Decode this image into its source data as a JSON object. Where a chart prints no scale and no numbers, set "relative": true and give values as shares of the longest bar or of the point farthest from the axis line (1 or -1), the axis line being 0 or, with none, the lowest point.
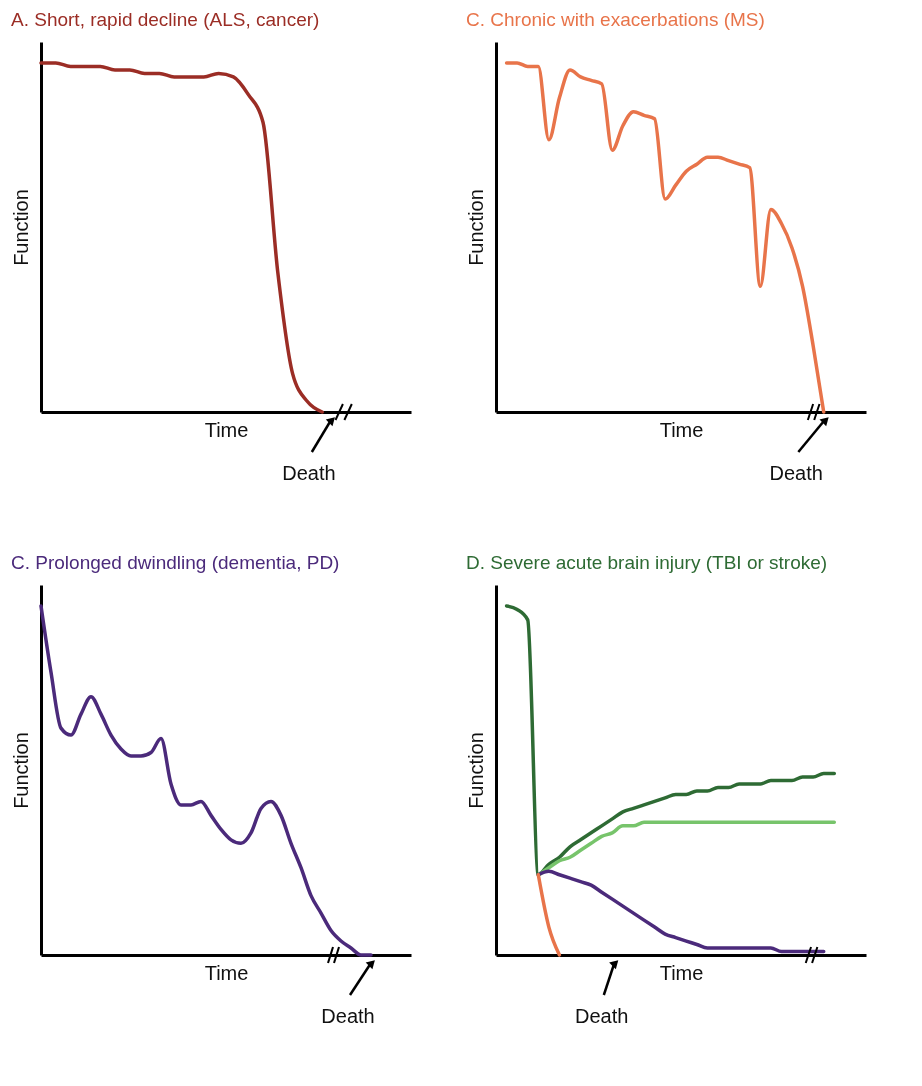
{
  "chart_data": [
    {
      "type": "line",
      "title": "A. Short, rapid decline (ALS, cancer)",
      "xlabel": "Time",
      "ylabel": "Function",
      "annotations": [
        "Death"
      ],
      "relative": true,
      "categories": [
        null,
        null,
        null,
        null,
        null,
        null,
        null,
        null,
        null,
        null,
        null,
        null,
        null,
        null,
        null,
        null,
        null,
        null,
        null,
        null,
        null,
        null,
        null,
        null,
        null
      ],
      "series": [
        {
          "color": "#9b2d25",
          "values": [
            1.0,
            1.0,
            0.99,
            0.99,
            0.99,
            0.98,
            0.98,
            0.97,
            0.97,
            0.96,
            0.96,
            0.96,
            0.97,
            0.96,
            0.91,
            0.83,
            0.4,
            0.11,
            0.03,
            0,
            null,
            null,
            null,
            null,
            null
          ]
        }
      ]
    },
    {
      "type": "line",
      "title": "C. Chronic with exacerbations (MS)",
      "xlabel": "Time",
      "ylabel": "Function",
      "annotations": [
        "Death"
      ],
      "relative": true,
      "categories": [
        null,
        null,
        null,
        null,
        null,
        null,
        null,
        null,
        null,
        null,
        null,
        null,
        null,
        null,
        null,
        null,
        null,
        null,
        null,
        null,
        null,
        null,
        null,
        null,
        null,
        null,
        null,
        null,
        null,
        null,
        null,
        null,
        null,
        null,
        null
      ],
      "series": [
        {
          "color": "#e8744a",
          "values": [
            null,
            1.0,
            1.0,
            0.99,
            0.99,
            0.78,
            0.9,
            0.98,
            0.96,
            0.95,
            0.94,
            0.75,
            0.82,
            0.86,
            0.85,
            0.84,
            0.61,
            0.65,
            0.69,
            0.71,
            0.73,
            0.73,
            0.72,
            0.71,
            0.7,
            0.36,
            0.58,
            0.54,
            0.47,
            0.36,
            0.19,
            0,
            null,
            null,
            null
          ]
        }
      ]
    },
    {
      "type": "line",
      "title": "C. Prolonged dwindling (dementia, PD)",
      "xlabel": "Time",
      "ylabel": "Function",
      "annotations": [
        "Death"
      ],
      "relative": true,
      "categories": [
        null,
        null,
        null,
        null,
        null,
        null,
        null,
        null,
        null,
        null,
        null,
        null,
        null,
        null,
        null,
        null,
        null,
        null,
        null,
        null,
        null,
        null,
        null,
        null,
        null,
        null,
        null,
        null,
        null,
        null,
        null,
        null,
        null,
        null,
        null,
        null,
        null
      ],
      "series": [
        {
          "color": "#4b2a7b",
          "values": [
            1.0,
            0.81,
            0.65,
            0.63,
            0.69,
            0.74,
            0.69,
            0.63,
            0.59,
            0.57,
            0.57,
            0.58,
            0.62,
            0.49,
            0.43,
            0.43,
            0.44,
            0.4,
            0.36,
            0.33,
            0.32,
            0.35,
            0.42,
            0.44,
            0.4,
            0.32,
            0.25,
            0.17,
            0.12,
            0.07,
            0.04,
            0.02,
            0,
            0,
            null,
            null,
            null
          ]
        }
      ]
    },
    {
      "type": "line",
      "title": "D. Severe acute brain injury (TBI or stroke)",
      "xlabel": "Time",
      "ylabel": "Function",
      "annotations": [
        "Death"
      ],
      "relative": true,
      "categories": [
        null,
        null,
        null,
        null,
        null,
        null,
        null,
        null,
        null,
        null,
        null,
        null,
        null,
        null,
        null,
        null,
        null,
        null,
        null,
        null,
        null,
        null,
        null,
        null,
        null,
        null,
        null,
        null,
        null,
        null,
        null,
        null,
        null,
        null,
        null
      ],
      "series": [
        {
          "color": "#2e6b34",
          "values": [
            null,
            1.0,
            0.99,
            0.96,
            0.23,
            0.26,
            0.28,
            0.31,
            0.33,
            0.35,
            0.37,
            0.39,
            0.41,
            0.42,
            0.43,
            0.44,
            0.45,
            0.46,
            0.46,
            0.47,
            0.47,
            0.48,
            0.48,
            0.49,
            0.49,
            0.49,
            0.5,
            0.5,
            0.5,
            0.51,
            0.51,
            0.52,
            0.52,
            null,
            null
          ]
        },
        {
          "color": "#77c46b",
          "values": [
            null,
            null,
            null,
            null,
            0.23,
            0.25,
            0.27,
            0.28,
            0.3,
            0.32,
            0.34,
            0.35,
            0.37,
            0.37,
            0.38,
            0.38,
            0.38,
            0.38,
            0.38,
            0.38,
            0.38,
            0.38,
            0.38,
            0.38,
            0.38,
            0.38,
            0.38,
            0.38,
            0.38,
            0.38,
            0.38,
            0.38,
            0.38,
            null,
            null
          ]
        },
        {
          "color": "#4b2a7b",
          "values": [
            null,
            null,
            null,
            null,
            0.23,
            0.24,
            0.23,
            0.22,
            0.21,
            0.2,
            0.18,
            0.16,
            0.14,
            0.12,
            0.1,
            0.08,
            0.06,
            0.05,
            0.04,
            0.03,
            0.02,
            0.02,
            0.02,
            0.02,
            0.02,
            0.02,
            0.02,
            0.01,
            0.01,
            0.01,
            0.01,
            0.01,
            null,
            null,
            null
          ]
        },
        {
          "color": "#e8744a",
          "values": [
            null,
            null,
            null,
            null,
            0.23,
            0.08,
            0,
            null,
            null,
            null,
            null,
            null,
            null,
            null,
            null,
            null,
            null,
            null,
            null,
            null,
            null,
            null,
            null,
            null,
            null,
            null,
            null,
            null,
            null,
            null,
            null,
            null,
            null,
            null,
            null
          ]
        }
      ]
    }
  ]
}
